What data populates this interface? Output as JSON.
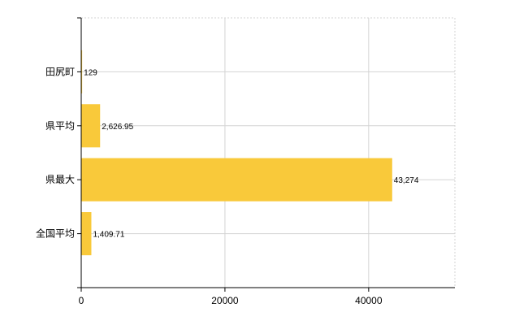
{
  "chart_data": {
    "type": "bar",
    "orientation": "horizontal",
    "categories": [
      "田尻町",
      "県平均",
      "県最大",
      "全国平均"
    ],
    "values": [
      129,
      2626.95,
      43274,
      1409.71
    ],
    "data_labels": [
      "129",
      "2,626.95",
      "43,274",
      "1,409.71"
    ],
    "xlim": [
      0,
      52000
    ],
    "xticks": [
      0,
      20000,
      40000
    ],
    "xtick_labels": [
      "0",
      "20000",
      "40000"
    ],
    "grid": true,
    "bar_color": "#f9c93a",
    "grid_color": "#d3d3d3"
  }
}
